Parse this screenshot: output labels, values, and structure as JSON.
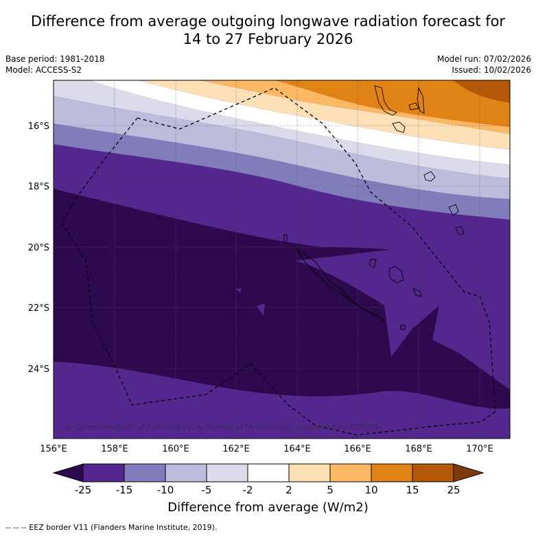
{
  "title_line1": "Difference from average outgoing longwave radiation forecast for",
  "title_line2": "14 to 27 February 2026",
  "base_period": "Base period: 1981-2018",
  "model": "Model: ACCESS-S2",
  "model_run": "Model run: 07/02/2026",
  "issued": "Issued: 10/02/2026",
  "copyright": "© Commonwealth of Australia 2026, Bureau of Meteorology, supported by COSPPac",
  "lat_labels": [
    "16°S",
    "18°S",
    "20°S",
    "22°S",
    "24°S"
  ],
  "lon_labels": [
    "156°E",
    "158°E",
    "160°E",
    "162°E",
    "164°E",
    "166°E",
    "168°E",
    "170°E"
  ],
  "colorbar": {
    "ticks": [
      "-25",
      "-15",
      "-10",
      "-5",
      "-2",
      "2",
      "5",
      "10",
      "15",
      "25"
    ],
    "title": "Difference from average (W/m2)",
    "colors": [
      "#2d0a4e",
      "#54278f",
      "#807dba",
      "#bcbddc",
      "#dadaeb",
      "#ffffff",
      "#fee0b6",
      "#fdb863",
      "#e08214",
      "#b35806",
      "#7f3b08"
    ]
  },
  "footer": "-- -- -- EEZ border V11 (Flanders Marine Institute, 2019)."
}
